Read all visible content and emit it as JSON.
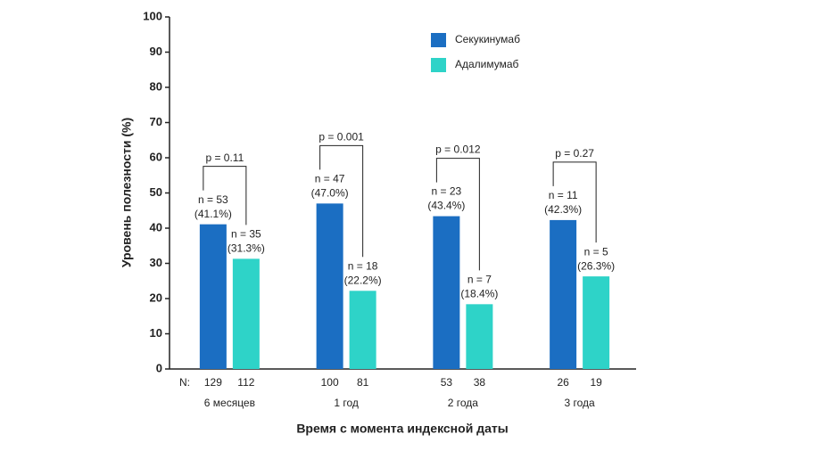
{
  "chart_data": {
    "type": "bar",
    "y_label": "Уровень полезности (%)",
    "x_label": "Время с момента индексной даты",
    "categories": [
      "6 месяцев",
      "1 год",
      "2 года",
      "3 года"
    ],
    "ylim": [
      0,
      100
    ],
    "yticks": [
      0,
      10,
      20,
      30,
      40,
      50,
      60,
      70,
      80,
      90,
      100
    ],
    "legend": "top-right",
    "sample_size_label": "N:",
    "series": [
      {
        "name": "Секукинумаб",
        "color": "#1b6ec2",
        "values": [
          41.1,
          47.0,
          43.4,
          42.3
        ],
        "value_labels": [
          "(41.1%)",
          "(47.0%)",
          "(43.4%)",
          "(42.3%)"
        ],
        "n_labels": [
          "n = 53",
          "n = 47",
          "n = 23",
          "n = 11"
        ],
        "sample_sizes": [
          129,
          100,
          53,
          26
        ]
      },
      {
        "name": "Адалимумаб",
        "color": "#2ed3c8",
        "values": [
          31.3,
          22.2,
          18.4,
          26.3
        ],
        "value_labels": [
          "(31.3%)",
          "(22.2%)",
          "(18.4%)",
          "(26.3%)"
        ],
        "n_labels": [
          "n = 35",
          "n = 18",
          "n = 7",
          "n = 5"
        ],
        "sample_sizes": [
          112,
          81,
          38,
          19
        ]
      }
    ],
    "p_values": [
      "p = 0.11",
      "p = 0.001",
      "p = 0.012",
      "p = 0.27"
    ]
  }
}
